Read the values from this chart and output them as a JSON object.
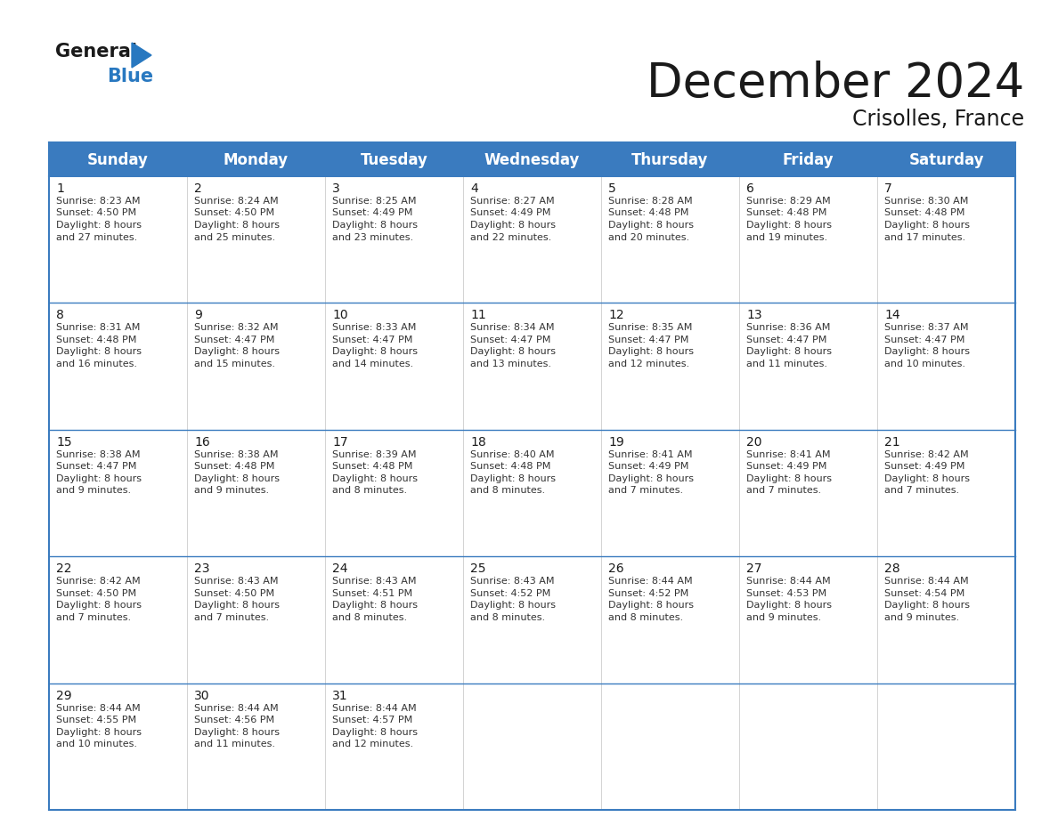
{
  "title": "December 2024",
  "subtitle": "Crisolles, France",
  "header_color": "#3a7bbf",
  "header_text_color": "#ffffff",
  "border_color": "#2e5f8a",
  "row_border_color": "#3a7bbf",
  "days_of_week": [
    "Sunday",
    "Monday",
    "Tuesday",
    "Wednesday",
    "Thursday",
    "Friday",
    "Saturday"
  ],
  "calendar_data": [
    [
      {
        "day": "1",
        "sunrise": "8:23 AM",
        "sunset": "4:50 PM",
        "daylight_h": "8 hours",
        "daylight_m": "27 minutes"
      },
      {
        "day": "2",
        "sunrise": "8:24 AM",
        "sunset": "4:50 PM",
        "daylight_h": "8 hours",
        "daylight_m": "25 minutes"
      },
      {
        "day": "3",
        "sunrise": "8:25 AM",
        "sunset": "4:49 PM",
        "daylight_h": "8 hours",
        "daylight_m": "23 minutes"
      },
      {
        "day": "4",
        "sunrise": "8:27 AM",
        "sunset": "4:49 PM",
        "daylight_h": "8 hours",
        "daylight_m": "22 minutes"
      },
      {
        "day": "5",
        "sunrise": "8:28 AM",
        "sunset": "4:48 PM",
        "daylight_h": "8 hours",
        "daylight_m": "20 minutes"
      },
      {
        "day": "6",
        "sunrise": "8:29 AM",
        "sunset": "4:48 PM",
        "daylight_h": "8 hours",
        "daylight_m": "19 minutes"
      },
      {
        "day": "7",
        "sunrise": "8:30 AM",
        "sunset": "4:48 PM",
        "daylight_h": "8 hours",
        "daylight_m": "17 minutes"
      }
    ],
    [
      {
        "day": "8",
        "sunrise": "8:31 AM",
        "sunset": "4:48 PM",
        "daylight_h": "8 hours",
        "daylight_m": "16 minutes"
      },
      {
        "day": "9",
        "sunrise": "8:32 AM",
        "sunset": "4:47 PM",
        "daylight_h": "8 hours",
        "daylight_m": "15 minutes"
      },
      {
        "day": "10",
        "sunrise": "8:33 AM",
        "sunset": "4:47 PM",
        "daylight_h": "8 hours",
        "daylight_m": "14 minutes"
      },
      {
        "day": "11",
        "sunrise": "8:34 AM",
        "sunset": "4:47 PM",
        "daylight_h": "8 hours",
        "daylight_m": "13 minutes"
      },
      {
        "day": "12",
        "sunrise": "8:35 AM",
        "sunset": "4:47 PM",
        "daylight_h": "8 hours",
        "daylight_m": "12 minutes"
      },
      {
        "day": "13",
        "sunrise": "8:36 AM",
        "sunset": "4:47 PM",
        "daylight_h": "8 hours",
        "daylight_m": "11 minutes"
      },
      {
        "day": "14",
        "sunrise": "8:37 AM",
        "sunset": "4:47 PM",
        "daylight_h": "8 hours",
        "daylight_m": "10 minutes"
      }
    ],
    [
      {
        "day": "15",
        "sunrise": "8:38 AM",
        "sunset": "4:47 PM",
        "daylight_h": "8 hours",
        "daylight_m": "9 minutes"
      },
      {
        "day": "16",
        "sunrise": "8:38 AM",
        "sunset": "4:48 PM",
        "daylight_h": "8 hours",
        "daylight_m": "9 minutes"
      },
      {
        "day": "17",
        "sunrise": "8:39 AM",
        "sunset": "4:48 PM",
        "daylight_h": "8 hours",
        "daylight_m": "8 minutes"
      },
      {
        "day": "18",
        "sunrise": "8:40 AM",
        "sunset": "4:48 PM",
        "daylight_h": "8 hours",
        "daylight_m": "8 minutes"
      },
      {
        "day": "19",
        "sunrise": "8:41 AM",
        "sunset": "4:49 PM",
        "daylight_h": "8 hours",
        "daylight_m": "7 minutes"
      },
      {
        "day": "20",
        "sunrise": "8:41 AM",
        "sunset": "4:49 PM",
        "daylight_h": "8 hours",
        "daylight_m": "7 minutes"
      },
      {
        "day": "21",
        "sunrise": "8:42 AM",
        "sunset": "4:49 PM",
        "daylight_h": "8 hours",
        "daylight_m": "7 minutes"
      }
    ],
    [
      {
        "day": "22",
        "sunrise": "8:42 AM",
        "sunset": "4:50 PM",
        "daylight_h": "8 hours",
        "daylight_m": "7 minutes"
      },
      {
        "day": "23",
        "sunrise": "8:43 AM",
        "sunset": "4:50 PM",
        "daylight_h": "8 hours",
        "daylight_m": "7 minutes"
      },
      {
        "day": "24",
        "sunrise": "8:43 AM",
        "sunset": "4:51 PM",
        "daylight_h": "8 hours",
        "daylight_m": "8 minutes"
      },
      {
        "day": "25",
        "sunrise": "8:43 AM",
        "sunset": "4:52 PM",
        "daylight_h": "8 hours",
        "daylight_m": "8 minutes"
      },
      {
        "day": "26",
        "sunrise": "8:44 AM",
        "sunset": "4:52 PM",
        "daylight_h": "8 hours",
        "daylight_m": "8 minutes"
      },
      {
        "day": "27",
        "sunrise": "8:44 AM",
        "sunset": "4:53 PM",
        "daylight_h": "8 hours",
        "daylight_m": "9 minutes"
      },
      {
        "day": "28",
        "sunrise": "8:44 AM",
        "sunset": "4:54 PM",
        "daylight_h": "8 hours",
        "daylight_m": "9 minutes"
      }
    ],
    [
      {
        "day": "29",
        "sunrise": "8:44 AM",
        "sunset": "4:55 PM",
        "daylight_h": "8 hours",
        "daylight_m": "10 minutes"
      },
      {
        "day": "30",
        "sunrise": "8:44 AM",
        "sunset": "4:56 PM",
        "daylight_h": "8 hours",
        "daylight_m": "11 minutes"
      },
      {
        "day": "31",
        "sunrise": "8:44 AM",
        "sunset": "4:57 PM",
        "daylight_h": "8 hours",
        "daylight_m": "12 minutes"
      },
      null,
      null,
      null,
      null
    ]
  ],
  "logo_color_general": "#1a1a1a",
  "logo_color_blue": "#2878c0",
  "title_fontsize": 38,
  "subtitle_fontsize": 17,
  "header_fontsize": 12,
  "day_num_fontsize": 10,
  "cell_text_fontsize": 8
}
